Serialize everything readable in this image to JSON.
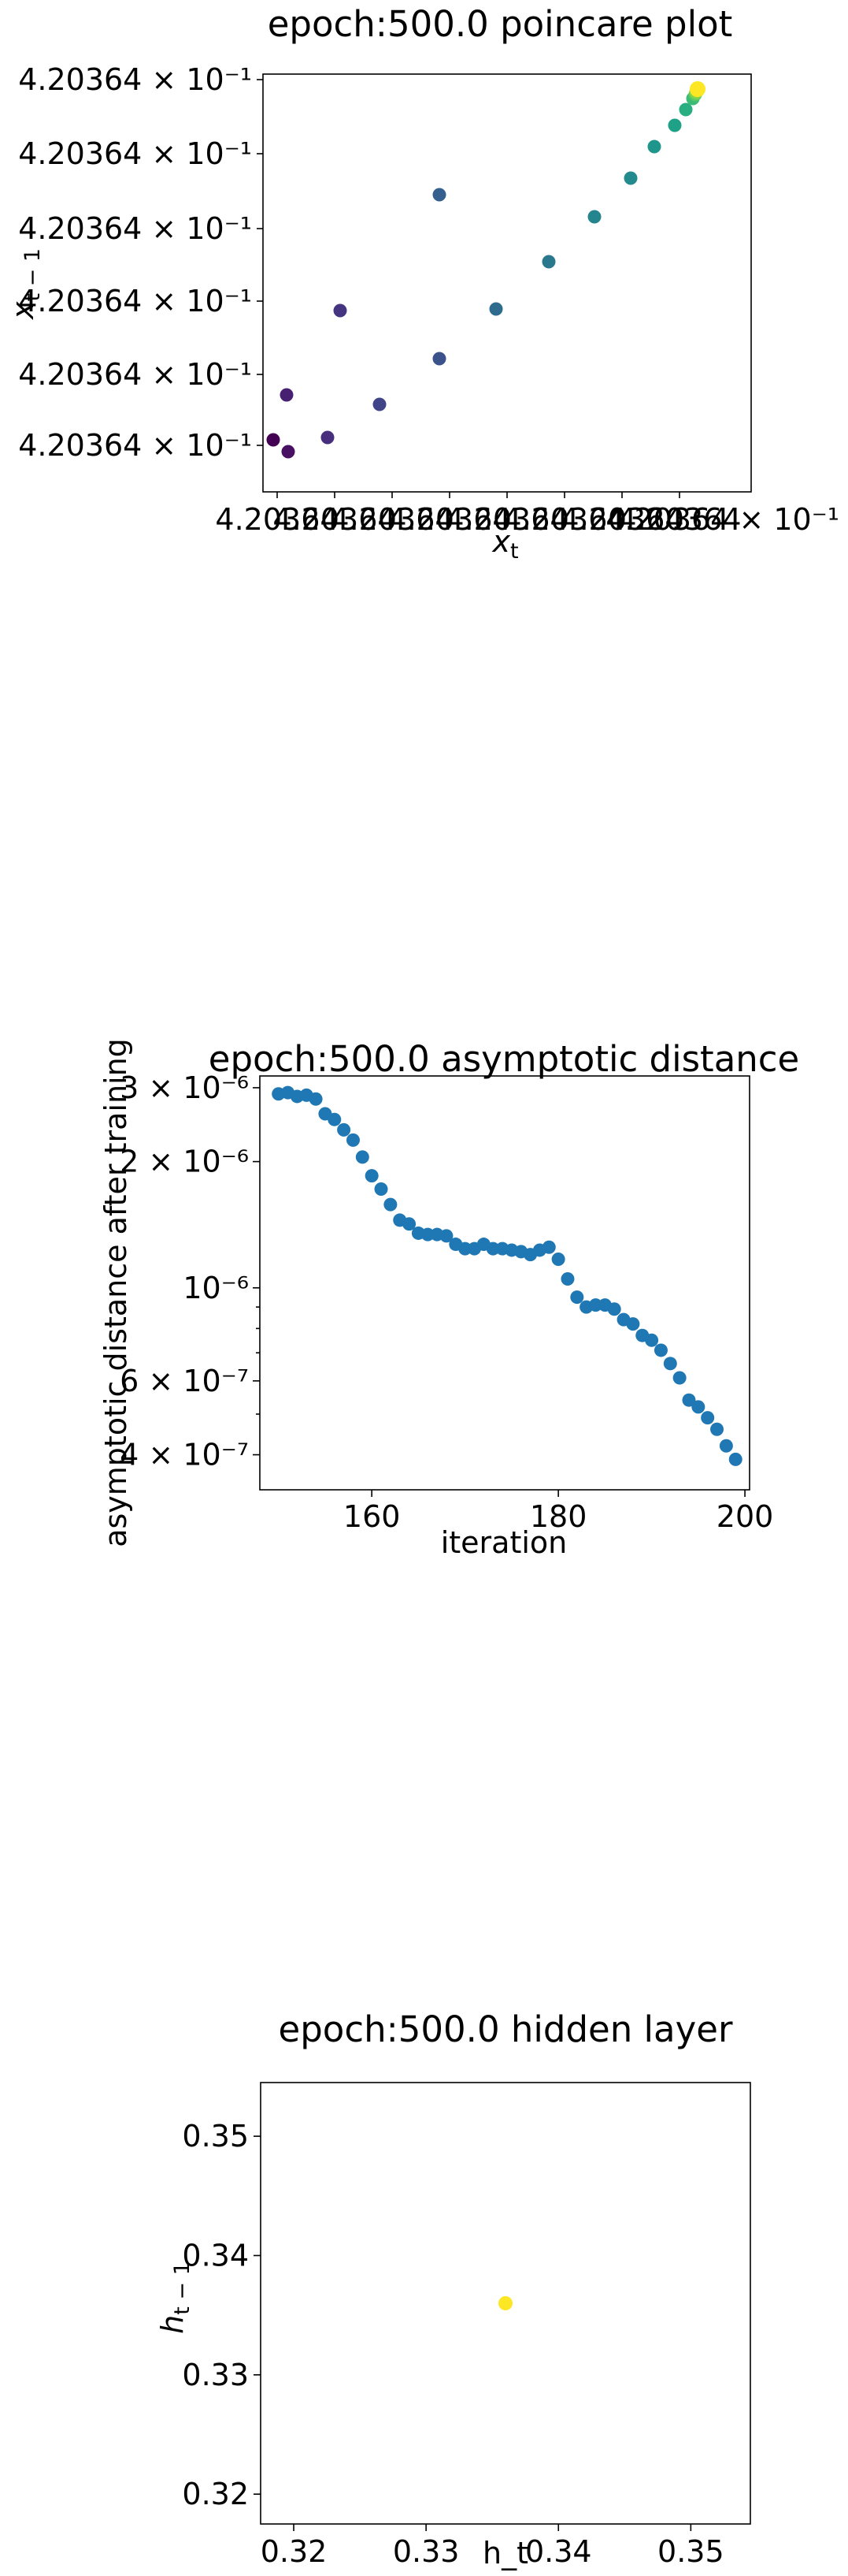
{
  "chart_data": [
    {
      "type": "scatter",
      "title": "epoch:500.0 poincare plot",
      "xlabel": "x_t",
      "ylabel": "x_{t-1}",
      "grid": false,
      "colormap": "viridis",
      "tick_text": "4.20364",
      "tick_suffix": "× 10⁻¹",
      "tick_label": "4.20364 × 10⁻¹",
      "x_tick_labels": [
        "4.20364",
        "4.20364",
        "4.20364",
        "4.20364",
        "4.20364",
        "4.20364",
        "4.20364",
        "4.20364"
      ],
      "y_tick_labels": [
        "4.20364 × 10⁻¹",
        "4.20364 × 10⁻¹",
        "4.20364 × 10⁻¹",
        "4.20364 × 10⁻¹",
        "4.20364 × 10⁻¹",
        "4.20364 × 10⁻¹"
      ],
      "point_colors": [
        "#440154",
        "#46085c",
        "#471063",
        "#47186a",
        "#482071",
        "#482878",
        "#472f7d",
        "#453581",
        "#433d84",
        "#414487",
        "#3f4a8a",
        "#3b528b",
        "#38598c",
        "#355f8d",
        "#33638d",
        "#2f6b8e",
        "#2c728e",
        "#2a788e",
        "#277f8e",
        "#25858e",
        "#238a8d",
        "#21918c",
        "#1f968b",
        "#1e9c89",
        "#1fa188",
        "#22a785",
        "#28ae80",
        "#2fb47c",
        "#3bbb75",
        "#48c16e",
        "#56c667",
        "#65cb5e",
        "#75d054",
        "#86d549",
        "#98d83e",
        "#aadc32",
        "#bddf26",
        "#cfe11c",
        "#e2e418",
        "#fde725"
      ]
    },
    {
      "type": "scatter",
      "title": "epoch:500.0 asymptotic distance",
      "xlabel": "iteration",
      "ylabel": "asymptotic distance after training",
      "yscale": "log",
      "grid": false,
      "color": "#1f77b4",
      "xlim": [
        148,
        200.5
      ],
      "ylim": [
        3.3e-07,
        3.2e-06
      ],
      "xticks": [
        160,
        180,
        200
      ],
      "x_tick_labels": [
        "160",
        "180",
        "200"
      ],
      "yticks": [
        4e-07,
        6e-07,
        1e-06,
        2e-06,
        3e-06
      ],
      "y_tick_labels": [
        "4 × 10⁻⁷",
        "6 × 10⁻⁷",
        "10⁻⁶",
        "2 × 10⁻⁶",
        "3 × 10⁻⁶"
      ],
      "x": [
        150,
        151,
        152,
        153,
        154,
        155,
        156,
        157,
        158,
        159,
        160,
        161,
        162,
        163,
        164,
        165,
        166,
        167,
        168,
        169,
        170,
        171,
        172,
        173,
        174,
        175,
        176,
        177,
        178,
        179,
        180,
        181,
        182,
        183,
        184,
        185,
        186,
        187,
        188,
        189,
        190,
        191,
        192,
        193,
        194,
        195,
        196,
        197,
        198,
        199
      ],
      "y": [
        2.9e-06,
        2.92e-06,
        2.86e-06,
        2.88e-06,
        2.82e-06,
        2.6e-06,
        2.52e-06,
        2.38e-06,
        2.25e-06,
        2.05e-06,
        1.85e-06,
        1.72e-06,
        1.58e-06,
        1.45e-06,
        1.42e-06,
        1.35e-06,
        1.34e-06,
        1.34e-06,
        1.33e-06,
        1.27e-06,
        1.24e-06,
        1.24e-06,
        1.27e-06,
        1.24e-06,
        1.24e-06,
        1.23e-06,
        1.22e-06,
        1.2e-06,
        1.23e-06,
        1.25e-06,
        1.17e-06,
        1.05e-06,
        9.5e-07,
        9e-07,
        9.1e-07,
        9.1e-07,
        8.9e-07,
        8.4e-07,
        8.2e-07,
        7.7e-07,
        7.5e-07,
        7.1e-07,
        6.6e-07,
        6.1e-07,
        5.4e-07,
        5.2e-07,
        4.9e-07,
        4.6e-07,
        4.2e-07,
        3.9e-07
      ]
    },
    {
      "type": "scatter",
      "title": "epoch:500.0 hidden layer",
      "xlabel": "h_t",
      "ylabel": "h_{t-1}",
      "grid": false,
      "color": "#fde725",
      "xlim": [
        0.3175,
        0.3545
      ],
      "ylim": [
        0.3175,
        0.3545
      ],
      "xticks": [
        0.32,
        0.33,
        0.34,
        0.35
      ],
      "x_tick_labels": [
        "0.32",
        "0.33",
        "0.34",
        "0.35"
      ],
      "yticks": [
        0.32,
        0.33,
        0.34,
        0.35
      ],
      "y_tick_labels": [
        "0.32",
        "0.33",
        "0.34",
        "0.35"
      ],
      "x": [
        0.336
      ],
      "y": [
        0.336
      ]
    }
  ]
}
